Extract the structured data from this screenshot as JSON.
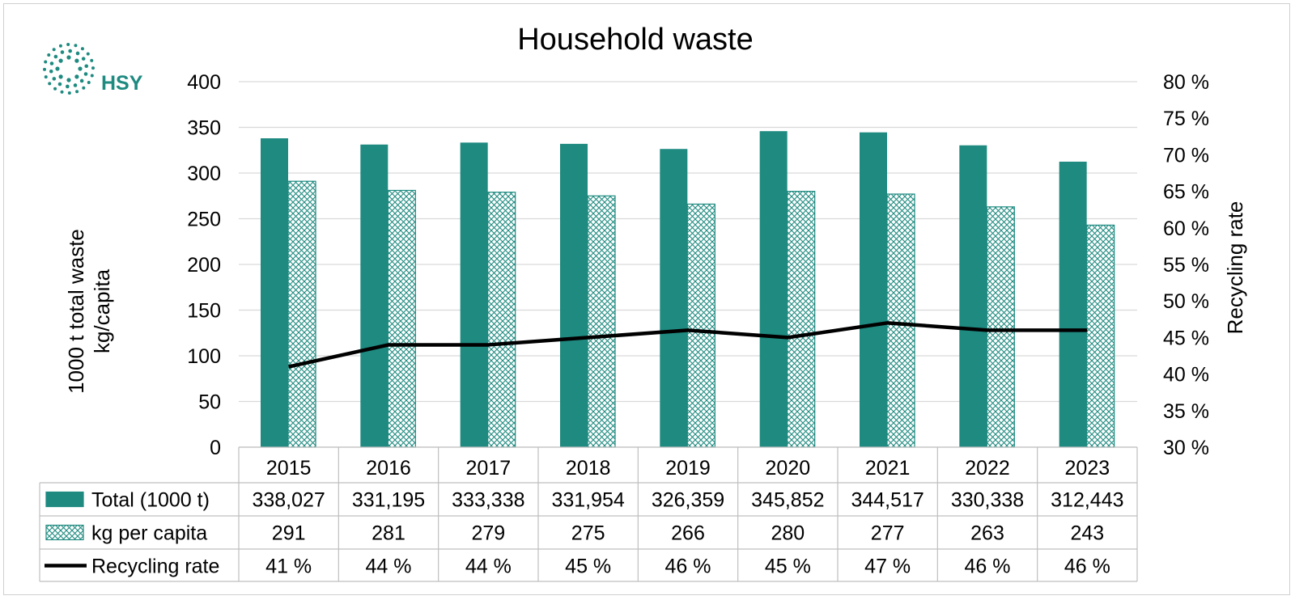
{
  "logo": {
    "text": "HSY",
    "color": "#1e8a80"
  },
  "chart_data": {
    "type": "bar",
    "title": "Household waste",
    "categories": [
      "2015",
      "2016",
      "2017",
      "2018",
      "2019",
      "2020",
      "2021",
      "2022",
      "2023"
    ],
    "ylabel_lines": [
      "1000 t total waste",
      "kg/capita"
    ],
    "y2label": "Recycling rate",
    "ylim": [
      0,
      400
    ],
    "y_ticks": [
      "0",
      "50",
      "100",
      "150",
      "200",
      "250",
      "300",
      "350",
      "400"
    ],
    "y2lim": [
      30,
      80
    ],
    "y2_ticks": [
      "30 %",
      "35 %",
      "40 %",
      "45 %",
      "50 %",
      "55 %",
      "60 %",
      "65 %",
      "70 %",
      "75 %",
      "80 %"
    ],
    "grid": true,
    "series": [
      {
        "name": "Total (1000 t)",
        "kind": "bar",
        "axis": "left",
        "color": "#1e8a80",
        "fill": "solid",
        "values": [
          338.027,
          331.195,
          333.338,
          331.954,
          326.359,
          345.852,
          344.517,
          330.338,
          312.443
        ],
        "labels": [
          "338,027",
          "331,195",
          "333,338",
          "331,954",
          "326,359",
          "345,852",
          "344,517",
          "330,338",
          "312,443"
        ]
      },
      {
        "name": "kg per capita",
        "kind": "bar",
        "axis": "left",
        "color": "#1e8a80",
        "fill": "crosshatch",
        "values": [
          291,
          281,
          279,
          275,
          266,
          280,
          277,
          263,
          243
        ],
        "labels": [
          "291",
          "281",
          "279",
          "275",
          "266",
          "280",
          "277",
          "263",
          "243"
        ]
      },
      {
        "name": "Recycling rate",
        "kind": "line",
        "axis": "right",
        "color": "#000000",
        "values": [
          41,
          44,
          44,
          45,
          46,
          45,
          47,
          46,
          46
        ],
        "labels": [
          "41 %",
          "44 %",
          "44 %",
          "45 %",
          "46 %",
          "45 %",
          "47 %",
          "46 %",
          "46 %"
        ]
      }
    ]
  }
}
